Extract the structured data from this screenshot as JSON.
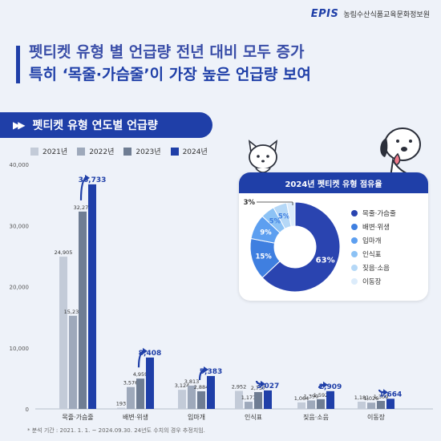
{
  "header": {
    "logo": "EPIS",
    "org_name": "농림수산식품교육문화정보원"
  },
  "headline": {
    "line1": "펫티켓 유형 별 언급량 전년 대비 모두 증가",
    "line2": "특히 ‘목줄·가슴줄’이 가장 높은 언급량 보여"
  },
  "section_title": "펫티켓 유형 연도별 언급량",
  "footnote": "* 분석 기간 : 2021. 1. 1. ~ 2024.09.30. 24년도 수치의 경우 추정치임.",
  "colors": {
    "y2021": "#c3cbd8",
    "y2022": "#9ea9bb",
    "y2023": "#6f7d93",
    "y2024": "#1f3fa8",
    "accent": "#1f3fa8"
  },
  "chart_data": [
    {
      "type": "bar",
      "categories": [
        "목줄·가슴줄",
        "배변·위생",
        "입마개",
        "인식표",
        "짖음·소음",
        "이동장"
      ],
      "series": [
        {
          "name": "2021년",
          "values": [
            24905,
            193,
            3124,
            2952,
            1064,
            1181
          ]
        },
        {
          "name": "2022년",
          "values": [
            15235,
            3576,
            3813,
            1171,
            1390,
            1026
          ]
        },
        {
          "name": "2023년",
          "values": [
            32277,
            4959,
            2884,
            2757,
            1592,
            1309
          ]
        },
        {
          "name": "2024년",
          "values": [
            36733,
            8408,
            5383,
            3027,
            2909,
            1664
          ]
        }
      ],
      "y_ticks": [
        "0",
        "10,000",
        "20,000",
        "30,000",
        "40,000"
      ],
      "ylim": [
        0,
        40000
      ],
      "title": "",
      "xlabel": "",
      "ylabel": "",
      "legend_position": "top-left",
      "grid": false
    },
    {
      "type": "pie",
      "title": "2024년 펫티켓 유형 점유율",
      "categories": [
        "목줄·가슴줄",
        "배변·위생",
        "입마개",
        "인식표",
        "짖음·소음",
        "이동장"
      ],
      "values": [
        63,
        15,
        9,
        5,
        5,
        3
      ],
      "labels": [
        "63%",
        "15%",
        "9%",
        "5%",
        "5%",
        "3%"
      ],
      "colors": [
        "#2a44b0",
        "#3f7fe0",
        "#5d9ff0",
        "#8cc2f5",
        "#b5d8f7",
        "#dcecfb"
      ],
      "legend_position": "right"
    }
  ]
}
